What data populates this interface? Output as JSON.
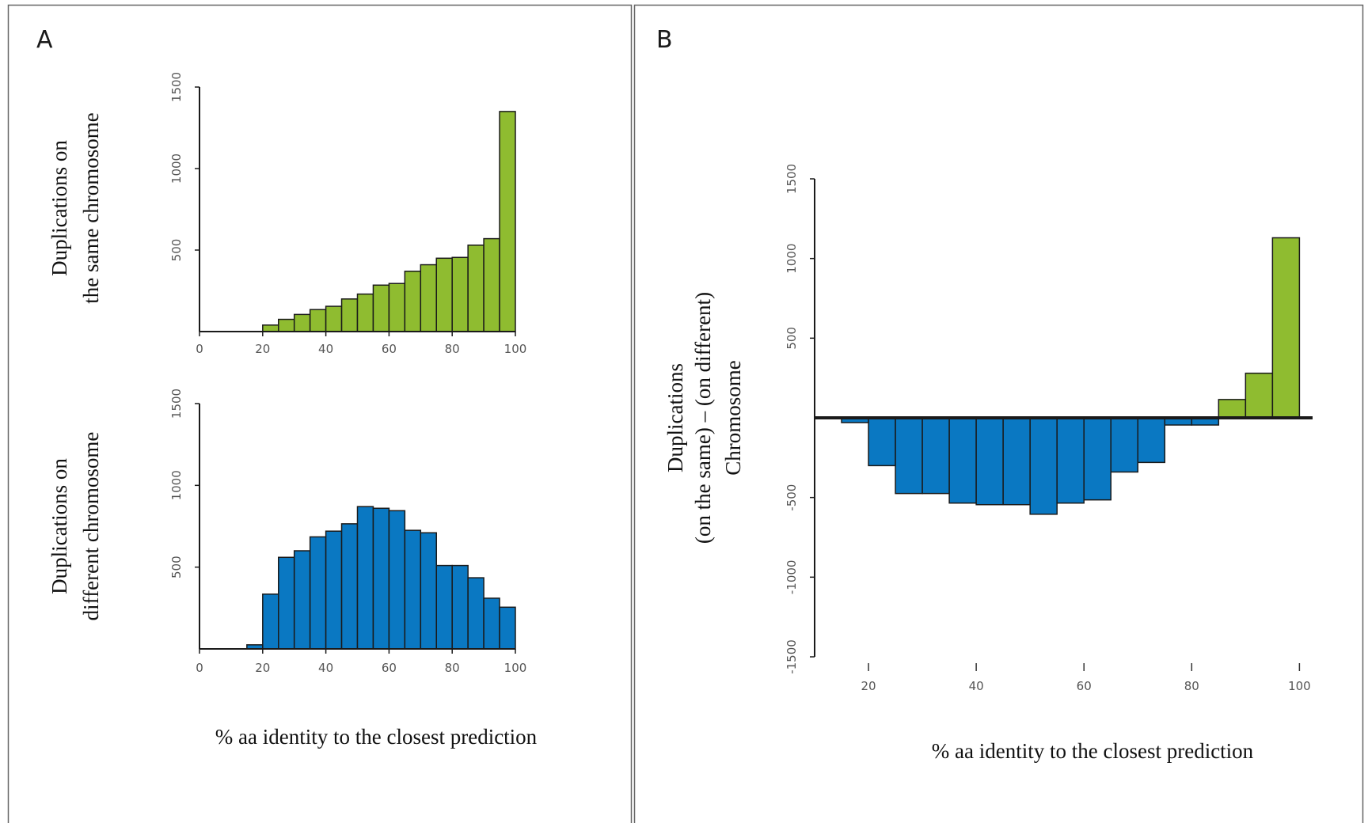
{
  "colors": {
    "green": "#8fbc30",
    "blue": "#0a78c2",
    "edge": "#1a1a1a",
    "frame": "#666666"
  },
  "chart_data": [
    {
      "panel": "A",
      "type": "bar",
      "ylabel_lines": [
        "Duplications on",
        "the same chromosome"
      ],
      "xlim": [
        0,
        100
      ],
      "ylim": [
        0,
        1500
      ],
      "x_ticks": [
        "0",
        "20",
        "40",
        "60",
        "80",
        "100"
      ],
      "y_ticks": [
        "500",
        "1000",
        "1500"
      ],
      "bin_edges": [
        0,
        5,
        10,
        15,
        20,
        25,
        30,
        35,
        40,
        45,
        50,
        55,
        60,
        65,
        70,
        75,
        80,
        85,
        90,
        95,
        100
      ],
      "values": [
        0,
        0,
        0,
        0,
        40,
        75,
        105,
        135,
        155,
        200,
        230,
        285,
        295,
        370,
        410,
        450,
        455,
        530,
        570,
        1350
      ],
      "bar_color": "green"
    },
    {
      "panel": "A",
      "type": "bar",
      "ylabel_lines": [
        "Duplications on",
        "different chromosome"
      ],
      "xlabel": "% aa identity to the closest prediction",
      "xlim": [
        0,
        100
      ],
      "ylim": [
        0,
        1500
      ],
      "x_ticks": [
        "0",
        "20",
        "40",
        "60",
        "80",
        "100"
      ],
      "y_ticks": [
        "500",
        "1000",
        "1500"
      ],
      "bin_edges": [
        0,
        5,
        10,
        15,
        20,
        25,
        30,
        35,
        40,
        45,
        50,
        55,
        60,
        65,
        70,
        75,
        80,
        85,
        90,
        95,
        100
      ],
      "values": [
        0,
        0,
        0,
        25,
        335,
        560,
        600,
        685,
        720,
        765,
        870,
        860,
        845,
        725,
        710,
        510,
        510,
        435,
        310,
        255
      ],
      "bar_color": "blue"
    },
    {
      "panel": "B",
      "type": "bar",
      "ylabel_lines": [
        "Duplications",
        "(on the same) – (on different)",
        "Chromosome"
      ],
      "xlabel": "% aa identity to the closest prediction",
      "xlim": [
        10,
        102
      ],
      "ylim": [
        -1500,
        1500
      ],
      "x_ticks": [
        "20",
        "40",
        "60",
        "80",
        "100"
      ],
      "y_ticks": [
        "-1500",
        "-1000",
        "-500",
        "500",
        "1000",
        "1500"
      ],
      "bin_edges": [
        15,
        20,
        25,
        30,
        35,
        40,
        45,
        50,
        55,
        60,
        65,
        70,
        75,
        80,
        85,
        90,
        95,
        100
      ],
      "values": [
        -30,
        -300,
        -475,
        -475,
        -535,
        -545,
        -545,
        -605,
        -535,
        -515,
        -340,
        -280,
        -45,
        -45,
        115,
        280,
        1130
      ],
      "positive_color": "green",
      "negative_color": "blue"
    }
  ]
}
